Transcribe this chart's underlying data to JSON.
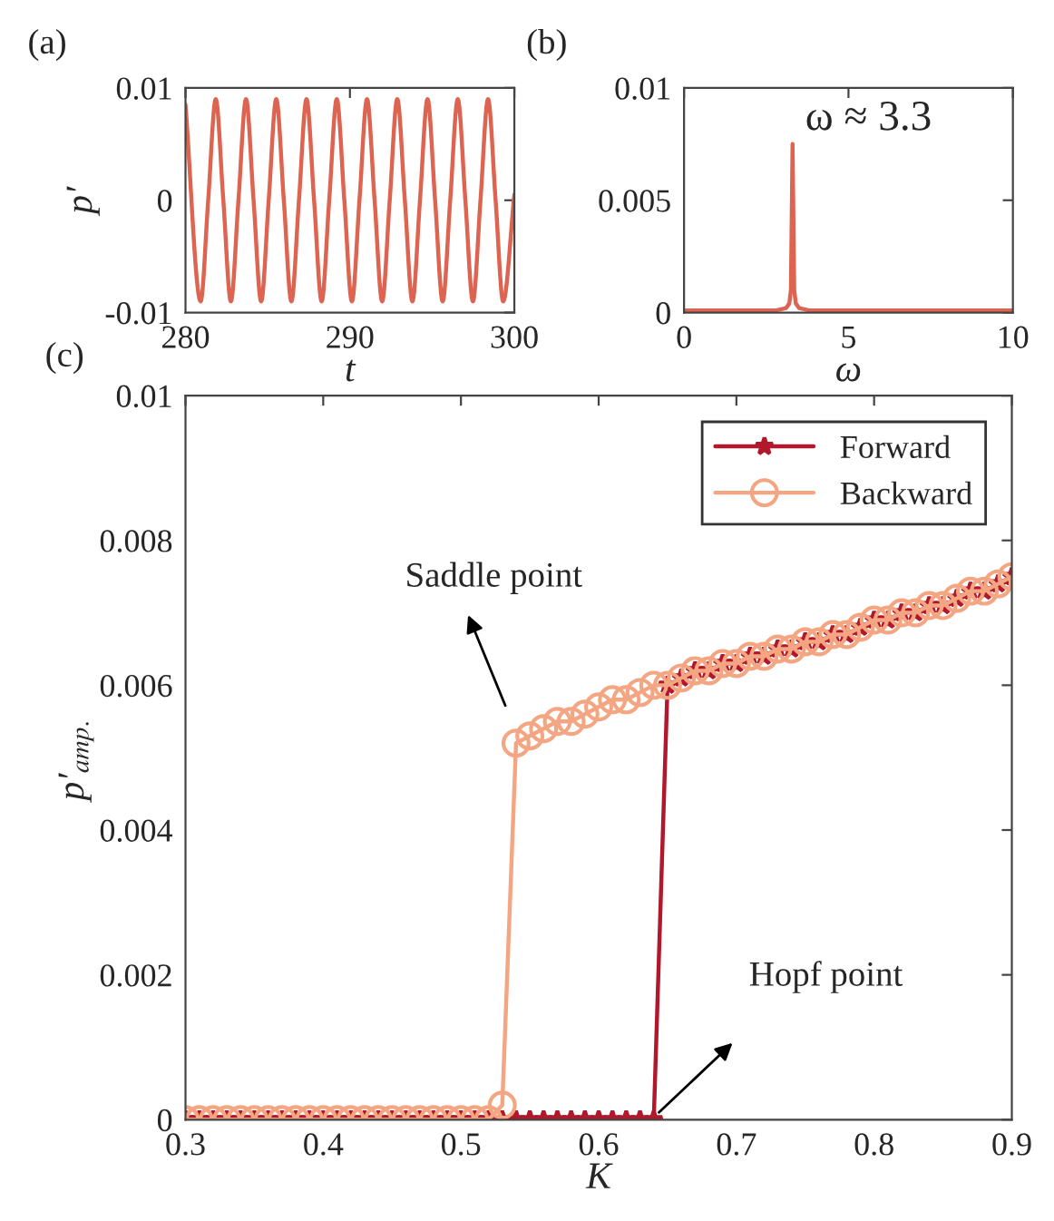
{
  "chart_data": [
    {
      "type": "line",
      "title": "(a)",
      "xlabel": "t",
      "ylabel": "p′",
      "xlim": [
        280,
        300
      ],
      "xticks": [
        280,
        290,
        300
      ],
      "ylim": [
        -0.01,
        0.01
      ],
      "yticks": [
        -0.01,
        0,
        0.01
      ],
      "grid": false,
      "legend": false,
      "series": [
        {
          "color": "#dd6450",
          "x": [
            280,
            280.92,
            281.38,
            281.84,
            282.3,
            282.76,
            283.22,
            283.68,
            284.14,
            284.6,
            285.06,
            285.52,
            285.98,
            286.44,
            286.9,
            287.36,
            287.82,
            288.28,
            288.74,
            289.2,
            289.66,
            290.12,
            290.58,
            291.04,
            291.5,
            291.96,
            292.42,
            292.88,
            293.34,
            293.8,
            294.26,
            294.72,
            295.18,
            295.64,
            296.1,
            296.56,
            297.02,
            297.48,
            297.94,
            298.4,
            298.86,
            299.32,
            300
          ],
          "values": [
            0.0085,
            -0.009,
            0,
            0.009,
            0,
            -0.009,
            0,
            0.009,
            0,
            -0.009,
            0,
            0.009,
            0,
            -0.009,
            0,
            0.009,
            0,
            -0.009,
            0,
            0.009,
            0,
            -0.009,
            0,
            0.009,
            0,
            -0.009,
            0,
            0.009,
            0,
            -0.009,
            0,
            0.009,
            0,
            -0.009,
            0,
            0.009,
            0,
            -0.009,
            0,
            0.009,
            0,
            -0.009,
            0.0005
          ]
        }
      ]
    },
    {
      "type": "line",
      "title": "(b)",
      "xlabel": "ω",
      "xlim": [
        0,
        10
      ],
      "xticks": [
        0,
        5,
        10
      ],
      "ylim": [
        0,
        0.01
      ],
      "yticks": [
        0,
        0.005,
        0.01
      ],
      "grid": false,
      "legend": false,
      "annotations": [
        {
          "text": "ω ≈ 3.3",
          "x": 3.3,
          "y": 0.0075
        }
      ],
      "series": [
        {
          "color": "#dd6450",
          "x": [
            0,
            2.8,
            3.1,
            3.2,
            3.25,
            3.3,
            3.35,
            3.4,
            3.5,
            3.8,
            10
          ],
          "values": [
            0.0001,
            0.0001,
            0.0002,
            0.0004,
            0.001,
            0.0075,
            0.001,
            0.0004,
            0.0002,
            0.0001,
            0.0001
          ]
        }
      ]
    },
    {
      "type": "line",
      "title": "(c)",
      "xlabel": "K",
      "ylabel": "p′$_{amp.}$",
      "xlim": [
        0.3,
        0.9
      ],
      "xticks": [
        0.3,
        0.4,
        0.5,
        0.6,
        0.7,
        0.8,
        0.9
      ],
      "ylim": [
        0,
        0.01
      ],
      "yticks": [
        0,
        0.002,
        0.004,
        0.006,
        0.008,
        0.01
      ],
      "grid": false,
      "legend": "top right",
      "annotations": [
        "Saddle point",
        "Hopf point"
      ],
      "x": [
        0.3,
        0.31,
        0.32,
        0.33,
        0.34,
        0.35,
        0.36,
        0.37,
        0.38,
        0.39,
        0.4,
        0.41,
        0.42,
        0.43,
        0.44,
        0.45,
        0.46,
        0.47,
        0.48,
        0.49,
        0.5,
        0.51,
        0.52,
        0.53,
        0.54,
        0.55,
        0.56,
        0.57,
        0.58,
        0.59,
        0.6,
        0.61,
        0.62,
        0.63,
        0.64,
        0.65,
        0.66,
        0.67,
        0.68,
        0.69,
        0.7,
        0.71,
        0.72,
        0.73,
        0.74,
        0.75,
        0.76,
        0.77,
        0.78,
        0.79,
        0.8,
        0.81,
        0.82,
        0.83,
        0.84,
        0.85,
        0.86,
        0.87,
        0.88,
        0.89,
        0.9
      ],
      "series": [
        {
          "name": "Forward",
          "color": "#b2182b",
          "marker": "star",
          "values": [
            0,
            0,
            0,
            0,
            0,
            0,
            0,
            0,
            0,
            0,
            0,
            0,
            0,
            0,
            0,
            0,
            0,
            0,
            0,
            0,
            0,
            0,
            0,
            0,
            0,
            0,
            0,
            0,
            0,
            0,
            0,
            0,
            0,
            0,
            0,
            0.006,
            0.0061,
            0.0062,
            0.0062,
            0.0063,
            0.0063,
            0.0064,
            0.0064,
            0.0065,
            0.0065,
            0.0066,
            0.0066,
            0.0067,
            0.0067,
            0.0068,
            0.0069,
            0.0069,
            0.007,
            0.007,
            0.0071,
            0.0071,
            0.0072,
            0.0073,
            0.0073,
            0.0074,
            0.0075
          ]
        },
        {
          "name": "Backward",
          "color": "#f4a582",
          "marker": "circle",
          "values": [
            0,
            0,
            0,
            0,
            0,
            0,
            0,
            0,
            0,
            0,
            0,
            0,
            0,
            0,
            0,
            0,
            0,
            0,
            0,
            0,
            0,
            0,
            0,
            0.0002,
            0.0052,
            0.0053,
            0.0054,
            0.0055,
            0.0055,
            0.0056,
            0.0057,
            0.0058,
            0.0058,
            0.0059,
            0.006,
            0.006,
            0.0061,
            0.0062,
            0.0062,
            0.0063,
            0.0063,
            0.0064,
            0.0064,
            0.0065,
            0.0065,
            0.0066,
            0.0066,
            0.0067,
            0.0067,
            0.0068,
            0.0069,
            0.0069,
            0.007,
            0.007,
            0.0071,
            0.0071,
            0.0072,
            0.0073,
            0.0073,
            0.0074,
            0.0075
          ]
        }
      ]
    }
  ]
}
